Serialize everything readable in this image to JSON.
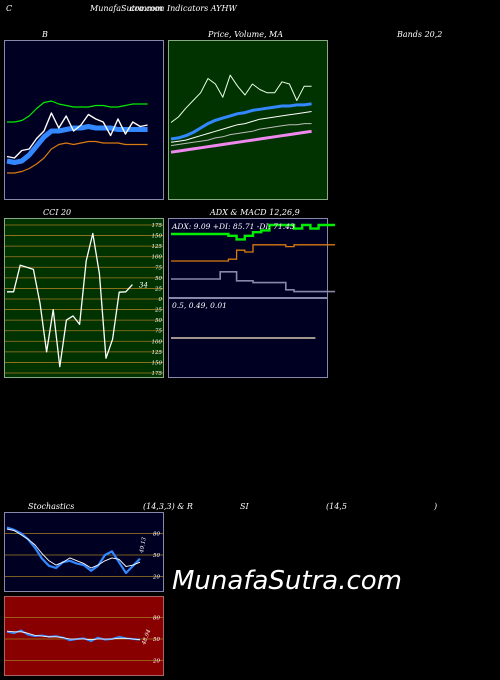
{
  "header": {
    "c": "C",
    "site_title": "MunafaSutra.com",
    "subtitle": "common Indicators AYHW"
  },
  "labels": {
    "b": "B",
    "price_volume_ma": "Price, Volume, MA",
    "bands": "Bands 20,2",
    "cci": "CCI 20",
    "adx_macd": "ADX  & MACD 12,26,9",
    "stochastics": "Stochastics",
    "stoch_params": "(14,3,3) & R",
    "si": "SI",
    "rsi_params": "(14,5",
    "close_paren": ")"
  },
  "watermark": "MunafaSutra.com",
  "colors": {
    "bands_bg": "#000022",
    "price_bg": "#003300",
    "cci_bg": "#003300",
    "adx_bg": "#000022",
    "stoch_bg": "#000022",
    "rsi_bg": "#880000",
    "grid": "#a07a20",
    "blue": "#3388ff",
    "green": "#00ee00",
    "orange": "#d97a10",
    "pink": "#ee88ee"
  },
  "chart_data": [
    {
      "id": "bollinger",
      "type": "line",
      "title": "B … Bands 20,2",
      "series": [
        {
          "values": [
            20,
            19,
            20,
            24,
            30,
            36,
            40,
            40,
            41,
            42,
            42,
            43,
            42,
            42,
            42,
            41,
            41,
            41,
            41,
            41
          ]
        },
        {
          "values": [
            46,
            46,
            47,
            50,
            55,
            59,
            60,
            58,
            57,
            56,
            56,
            56,
            57,
            57,
            56,
            56,
            57,
            58,
            58,
            58
          ]
        },
        {
          "values": [
            12,
            12,
            13,
            15,
            18,
            22,
            28,
            31,
            32,
            31,
            32,
            33,
            33,
            32,
            32,
            32,
            31,
            31,
            31,
            31
          ]
        },
        {
          "values": [
            23,
            22,
            27,
            28,
            35,
            40,
            52,
            42,
            50,
            40,
            44,
            51,
            48,
            46,
            37,
            48,
            38,
            46,
            43,
            44
          ]
        }
      ]
    },
    {
      "id": "price_ma",
      "type": "line",
      "title": "Price, Volume, MA",
      "series": [
        {
          "values": [
            35,
            40,
            48,
            55,
            62,
            75,
            70,
            58,
            78,
            68,
            60,
            70,
            65,
            62,
            62,
            72,
            70,
            55,
            68,
            68
          ]
        },
        {
          "values": [
            20,
            21,
            23,
            26,
            30,
            34,
            37,
            39,
            41,
            43,
            44,
            46,
            47,
            48,
            49,
            50,
            50,
            51,
            51,
            52
          ]
        },
        {
          "values": [
            17,
            18,
            19,
            21,
            23,
            25,
            27,
            29,
            31,
            33,
            34,
            36,
            38,
            39,
            40,
            41,
            42,
            43,
            44,
            45
          ]
        },
        {
          "values": [
            14,
            15,
            16,
            17,
            18,
            19,
            21,
            22,
            24,
            25,
            26,
            27,
            29,
            30,
            31,
            32,
            33,
            33,
            34,
            34
          ]
        },
        {
          "values": [
            8,
            9,
            10,
            11,
            12,
            13,
            14,
            15,
            16,
            17,
            18,
            19,
            20,
            21,
            22,
            23,
            24,
            25,
            26,
            27
          ]
        }
      ]
    },
    {
      "id": "cci",
      "type": "line",
      "title": "CCI 20",
      "ylim": [
        -175,
        175
      ],
      "y_ticks": [
        175,
        150,
        125,
        100,
        75,
        50,
        25,
        0,
        -25,
        -50,
        -75,
        -100,
        -125,
        -150,
        -175
      ],
      "y_tick_labels": [
        "175",
        "150",
        "125",
        "100",
        "75",
        "50",
        "25",
        "0",
        "25",
        "50",
        "75",
        "100",
        "125",
        "150",
        "175"
      ],
      "last_value_label": "34",
      "values": [
        17,
        17,
        80,
        75,
        70,
        -10,
        -125,
        -25,
        -160,
        -50,
        -40,
        -60,
        90,
        155,
        60,
        -140,
        -95,
        16,
        17,
        34
      ]
    },
    {
      "id": "adx_macd",
      "type": "line",
      "title": "ADX  & MACD 12,26,9",
      "adx_label": "ADX: 9.09  +DI: 85.71  -DI: 71.43",
      "macd_label": "0.5,  0.49,  0.01",
      "series": [
        {
          "values": [
            70,
            70,
            70,
            70,
            70,
            70,
            70,
            68,
            64,
            68,
            72,
            74,
            80,
            80,
            80,
            76,
            80,
            76,
            80,
            80
          ]
        },
        {
          "values": [
            40,
            40,
            40,
            40,
            40,
            40,
            40,
            42,
            52,
            50,
            58,
            58,
            58,
            58,
            56,
            58,
            58,
            58,
            58,
            58
          ]
        },
        {
          "values": [
            20,
            20,
            20,
            20,
            20,
            20,
            28,
            28,
            18,
            18,
            16,
            16,
            16,
            16,
            8,
            6,
            6,
            6,
            6,
            6
          ]
        }
      ],
      "macd": {
        "values": [
          0.5,
          0.5,
          0.5,
          0.5,
          0.5,
          0.5,
          0.5,
          0.5,
          0.5,
          0.5,
          0.5,
          0.5,
          0.5,
          0.5,
          0.5,
          0.5,
          0.5,
          0.5,
          0.5,
          0.5
        ]
      }
    },
    {
      "id": "stochastics",
      "type": "line",
      "title": "Stochastics (14,3,3)",
      "y_ticks": [
        80,
        50,
        20
      ],
      "last_value_label": "49.13",
      "series": [
        {
          "values": [
            88,
            85,
            80,
            72,
            60,
            45,
            35,
            32,
            40,
            42,
            38,
            36,
            28,
            35,
            50,
            55,
            40,
            25,
            35,
            45
          ]
        },
        {
          "values": [
            86,
            84,
            78,
            72,
            64,
            52,
            42,
            36,
            40,
            46,
            42,
            38,
            32,
            36,
            42,
            46,
            44,
            34,
            36,
            40
          ]
        }
      ]
    },
    {
      "id": "rsi",
      "type": "line",
      "title": "RSI (14,5)",
      "y_ticks": [
        80,
        50,
        20
      ],
      "last_value_label": "48.94",
      "series": [
        {
          "values": [
            60,
            58,
            62,
            56,
            54,
            55,
            53,
            54,
            52,
            48,
            50,
            51,
            47,
            52,
            49,
            50,
            53,
            51,
            50,
            49
          ]
        },
        {
          "values": [
            61,
            60,
            60,
            58,
            55,
            54,
            53,
            53,
            52,
            50,
            50,
            50,
            49,
            50,
            50,
            50,
            51,
            51,
            50,
            49
          ]
        }
      ]
    }
  ]
}
